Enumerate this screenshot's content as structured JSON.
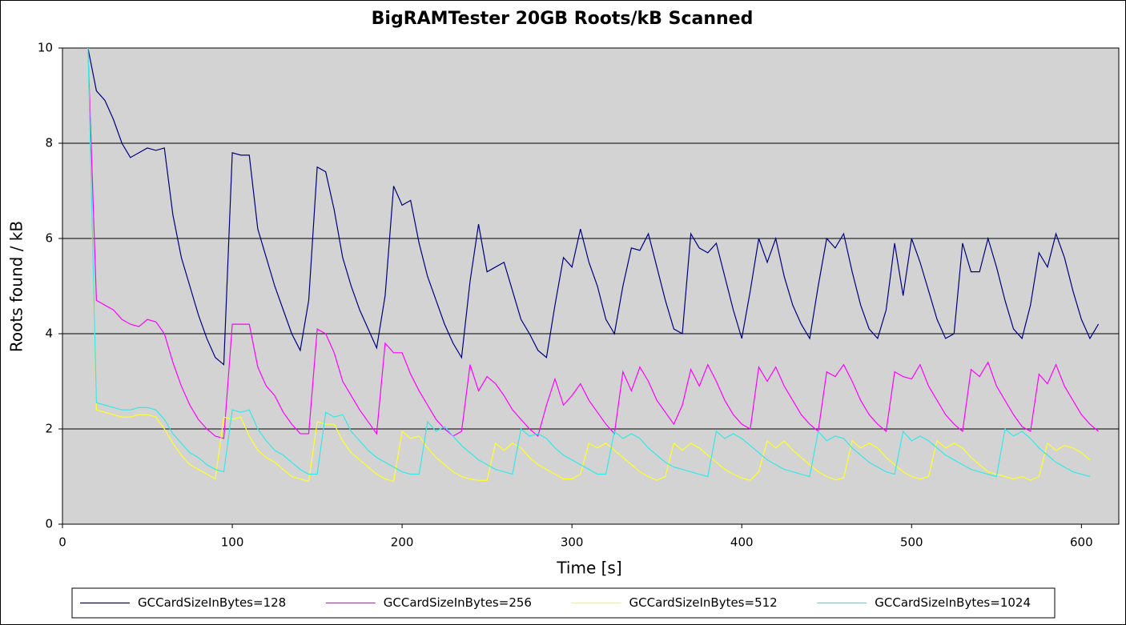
{
  "chart_data": {
    "type": "line",
    "title": "BigRAMTester 20GB Roots/kB Scanned",
    "xlabel": "Time [s]",
    "ylabel": "Roots found / kB",
    "xlim": [
      0,
      622
    ],
    "ylim": [
      0,
      10
    ],
    "xticks": [
      0,
      100,
      200,
      300,
      400,
      500,
      600
    ],
    "yticks": [
      0,
      2,
      4,
      6,
      8,
      10
    ],
    "grid": true,
    "background": "#d3d3d3",
    "legend": "bottom",
    "x": [
      15,
      20,
      25,
      30,
      35,
      40,
      45,
      50,
      55,
      60,
      65,
      70,
      75,
      80,
      85,
      90,
      95,
      100,
      105,
      110,
      115,
      120,
      125,
      130,
      135,
      140,
      145,
      150,
      155,
      160,
      165,
      170,
      175,
      180,
      185,
      190,
      195,
      200,
      205,
      210,
      215,
      220,
      225,
      230,
      235,
      240,
      245,
      250,
      255,
      260,
      265,
      270,
      275,
      280,
      285,
      290,
      295,
      300,
      305,
      310,
      315,
      320,
      325,
      330,
      335,
      340,
      345,
      350,
      355,
      360,
      365,
      370,
      375,
      380,
      385,
      390,
      395,
      400,
      405,
      410,
      415,
      420,
      425,
      430,
      435,
      440,
      445,
      450,
      455,
      460,
      465,
      470,
      475,
      480,
      485,
      490,
      495,
      500,
      505,
      510,
      515,
      520,
      525,
      530,
      535,
      540,
      545,
      550,
      555,
      560,
      565,
      570,
      575,
      580,
      585,
      590,
      595,
      600,
      605,
      610
    ],
    "series": [
      {
        "name": "GCCardSizeInBytes=128",
        "color": "#000080",
        "values": [
          10,
          9.1,
          8.9,
          8.5,
          8.0,
          7.7,
          7.8,
          7.9,
          7.85,
          7.9,
          6.5,
          5.6,
          5.0,
          4.4,
          3.9,
          3.5,
          3.35,
          7.8,
          7.75,
          7.75,
          6.2,
          5.6,
          5.0,
          4.5,
          4.0,
          3.65,
          4.7,
          7.5,
          7.4,
          6.6,
          5.6,
          5.0,
          4.5,
          4.1,
          3.7,
          4.8,
          7.1,
          6.7,
          6.8,
          5.9,
          5.2,
          4.7,
          4.2,
          3.8,
          3.5,
          5.1,
          6.3,
          5.3,
          5.4,
          5.5,
          4.9,
          4.3,
          4.0,
          3.65,
          3.5,
          4.6,
          5.6,
          5.4,
          6.2,
          5.5,
          5.0,
          4.3,
          4.0,
          5.0,
          5.8,
          5.75,
          6.1,
          5.4,
          4.7,
          4.1,
          4.0,
          6.1,
          5.8,
          5.7,
          5.9,
          5.2,
          4.5,
          3.9,
          4.9,
          6.0,
          5.5,
          6.0,
          5.2,
          4.6,
          4.2,
          3.9,
          5.0,
          6.0,
          5.8,
          6.1,
          5.3,
          4.6,
          4.1,
          3.9,
          4.5,
          5.9,
          4.8,
          6.0,
          5.5,
          4.9,
          4.3,
          3.9,
          4.0,
          5.9,
          5.3,
          5.3,
          6.0,
          5.4,
          4.7,
          4.1,
          3.9,
          4.6,
          5.7,
          5.4,
          6.1,
          5.6,
          4.9,
          4.3,
          3.9,
          4.2
        ]
      },
      {
        "name": "GCCardSizeInBytes=256",
        "color": "#ff00ff",
        "values": [
          10,
          4.7,
          4.6,
          4.5,
          4.3,
          4.2,
          4.15,
          4.3,
          4.25,
          4.0,
          3.4,
          2.9,
          2.5,
          2.2,
          2.0,
          1.85,
          1.8,
          4.2,
          4.2,
          4.2,
          3.3,
          2.9,
          2.7,
          2.35,
          2.1,
          1.9,
          1.9,
          4.1,
          4.0,
          3.6,
          3.0,
          2.7,
          2.4,
          2.15,
          1.9,
          3.8,
          3.6,
          3.6,
          3.15,
          2.8,
          2.5,
          2.2,
          2.0,
          1.85,
          1.95,
          3.35,
          2.8,
          3.1,
          2.95,
          2.7,
          2.4,
          2.2,
          2.0,
          1.85,
          2.5,
          3.05,
          2.5,
          2.7,
          2.95,
          2.6,
          2.35,
          2.1,
          1.9,
          3.2,
          2.8,
          3.3,
          3.0,
          2.6,
          2.35,
          2.1,
          2.5,
          3.25,
          2.9,
          3.35,
          3.0,
          2.6,
          2.3,
          2.1,
          2.0,
          3.3,
          3.0,
          3.3,
          2.9,
          2.6,
          2.3,
          2.1,
          1.95,
          3.2,
          3.1,
          3.35,
          3.0,
          2.6,
          2.3,
          2.1,
          1.95,
          3.2,
          3.1,
          3.05,
          3.35,
          2.9,
          2.6,
          2.3,
          2.1,
          1.95,
          3.25,
          3.1,
          3.4,
          2.9,
          2.6,
          2.3,
          2.05,
          1.95,
          3.15,
          2.95,
          3.35,
          2.9,
          2.6,
          2.3,
          2.1,
          1.95
        ]
      },
      {
        "name": "GCCardSizeInBytes=512",
        "color": "#ffff22",
        "values": [
          10,
          2.4,
          2.35,
          2.3,
          2.25,
          2.25,
          2.3,
          2.3,
          2.25,
          2.0,
          1.7,
          1.45,
          1.25,
          1.15,
          1.05,
          0.95,
          2.25,
          2.2,
          2.25,
          1.85,
          1.55,
          1.4,
          1.3,
          1.15,
          1.0,
          0.95,
          0.9,
          2.15,
          2.1,
          2.1,
          1.75,
          1.5,
          1.35,
          1.2,
          1.05,
          0.95,
          0.9,
          1.95,
          1.8,
          1.85,
          1.6,
          1.4,
          1.25,
          1.1,
          1.0,
          0.95,
          0.92,
          0.92,
          1.7,
          1.55,
          1.7,
          1.6,
          1.4,
          1.25,
          1.15,
          1.05,
          0.95,
          0.95,
          1.05,
          1.7,
          1.6,
          1.7,
          1.55,
          1.4,
          1.25,
          1.1,
          1.0,
          0.92,
          1.0,
          1.7,
          1.55,
          1.7,
          1.6,
          1.45,
          1.3,
          1.15,
          1.05,
          0.97,
          0.92,
          1.1,
          1.75,
          1.6,
          1.75,
          1.55,
          1.4,
          1.25,
          1.1,
          1.0,
          0.93,
          0.97,
          1.75,
          1.6,
          1.7,
          1.6,
          1.4,
          1.25,
          1.1,
          1.0,
          0.95,
          1.0,
          1.75,
          1.6,
          1.7,
          1.6,
          1.4,
          1.25,
          1.1,
          1.05,
          1.0,
          0.95,
          1.0,
          0.92,
          1.0,
          1.7,
          1.55,
          1.65,
          1.6,
          1.5,
          1.35,
          null
        ]
      },
      {
        "name": "GCCardSizeInBytes=1024",
        "color": "#33e8e8",
        "values": [
          10,
          2.55,
          2.5,
          2.45,
          2.4,
          2.4,
          2.45,
          2.45,
          2.4,
          2.2,
          1.9,
          1.7,
          1.5,
          1.4,
          1.25,
          1.15,
          1.1,
          2.4,
          2.35,
          2.4,
          2.0,
          1.75,
          1.55,
          1.45,
          1.3,
          1.15,
          1.05,
          1.05,
          2.35,
          2.25,
          2.3,
          1.95,
          1.75,
          1.55,
          1.4,
          1.3,
          1.2,
          1.1,
          1.05,
          1.05,
          2.15,
          1.95,
          2.05,
          1.85,
          1.65,
          1.5,
          1.35,
          1.25,
          1.15,
          1.1,
          1.05,
          2.0,
          1.85,
          1.9,
          1.8,
          1.6,
          1.45,
          1.35,
          1.25,
          1.15,
          1.05,
          1.05,
          1.95,
          1.8,
          1.9,
          1.8,
          1.6,
          1.45,
          1.3,
          1.2,
          1.15,
          1.1,
          1.05,
          1.0,
          1.95,
          1.8,
          1.9,
          1.8,
          1.65,
          1.5,
          1.35,
          1.25,
          1.15,
          1.1,
          1.05,
          1.0,
          1.95,
          1.75,
          1.85,
          1.8,
          1.6,
          1.45,
          1.3,
          1.2,
          1.1,
          1.05,
          1.95,
          1.75,
          1.85,
          1.75,
          1.6,
          1.45,
          1.35,
          1.25,
          1.15,
          1.1,
          1.05,
          1.0,
          2.0,
          1.85,
          1.95,
          1.8,
          1.6,
          1.45,
          1.3,
          1.2,
          1.1,
          1.05,
          1.0,
          null
        ]
      }
    ]
  }
}
